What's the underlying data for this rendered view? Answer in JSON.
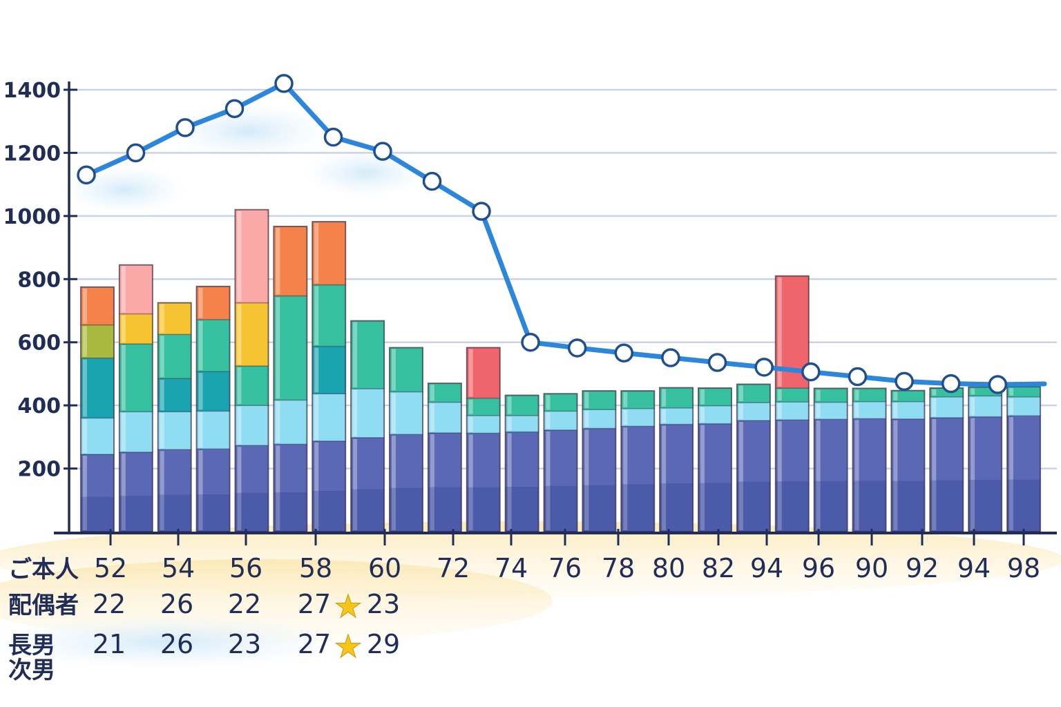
{
  "chart_data": {
    "type": "bar",
    "ylim": [
      0,
      1400
    ],
    "yticks": [
      "200",
      "400",
      "600",
      "800",
      "1000",
      "1200",
      "1400"
    ],
    "categories": [
      "52",
      "54",
      "56",
      "58",
      "60",
      "72",
      "74",
      "76",
      "78",
      "80",
      "82",
      "94",
      "96",
      "90",
      "92",
      "94",
      "98"
    ],
    "stack_colors": [
      "#5a68b6",
      "#8fdcf3",
      "#1aa3b0",
      "#36c0a0",
      "#a9b93d",
      "#f7c431",
      "#f4824a",
      "#fba8a8",
      "#f0656b"
    ],
    "bars": [
      [
        245,
        115,
        190,
        0,
        105,
        0,
        120,
        0,
        0
      ],
      [
        252,
        128,
        0,
        215,
        0,
        95,
        0,
        155,
        0
      ],
      [
        260,
        120,
        105,
        140,
        0,
        100,
        0,
        0,
        0
      ],
      [
        262,
        120,
        125,
        165,
        0,
        0,
        105,
        0,
        0
      ],
      [
        273,
        127,
        0,
        125,
        0,
        200,
        0,
        295,
        0
      ],
      [
        277,
        140,
        0,
        330,
        0,
        0,
        220,
        0,
        0
      ],
      [
        287,
        150,
        150,
        195,
        0,
        0,
        200,
        0,
        0
      ],
      [
        298,
        155,
        0,
        215,
        0,
        0,
        0,
        0,
        0
      ],
      [
        308,
        135,
        0,
        140,
        0,
        0,
        0,
        0,
        0
      ],
      [
        313,
        97,
        0,
        60,
        0,
        0,
        0,
        0,
        0
      ],
      [
        312,
        56,
        0,
        55,
        0,
        0,
        0,
        0,
        160
      ],
      [
        316,
        52,
        0,
        64,
        0,
        0,
        0,
        0,
        0
      ],
      [
        322,
        60,
        0,
        55,
        0,
        0,
        0,
        0,
        0
      ],
      [
        327,
        60,
        0,
        59,
        0,
        0,
        0,
        0,
        0
      ],
      [
        334,
        56,
        0,
        56,
        0,
        0,
        0,
        0,
        0
      ],
      [
        340,
        52,
        0,
        64,
        0,
        0,
        0,
        0,
        0
      ],
      [
        342,
        57,
        0,
        56,
        0,
        0,
        0,
        0,
        0
      ],
      [
        352,
        57,
        0,
        58,
        0,
        0,
        0,
        0,
        0
      ],
      [
        354,
        57,
        0,
        44,
        0,
        0,
        0,
        0,
        355
      ],
      [
        356,
        54,
        0,
        44,
        0,
        0,
        0,
        0,
        0
      ],
      [
        358,
        54,
        0,
        42,
        0,
        0,
        0,
        0,
        0
      ],
      [
        357,
        55,
        0,
        35,
        0,
        0,
        0,
        0,
        0
      ],
      [
        361,
        66,
        0,
        28,
        0,
        0,
        0,
        0,
        0
      ],
      [
        364,
        66,
        0,
        28,
        0,
        0,
        0,
        0,
        0
      ],
      [
        367,
        60,
        0,
        32,
        0,
        0,
        0,
        0,
        0
      ]
    ],
    "line": [
      1130,
      1200,
      1280,
      1340,
      1420,
      1250,
      1205,
      1110,
      1015,
      600,
      582,
      566,
      551,
      536,
      521,
      506,
      491,
      476,
      469,
      466,
      468
    ],
    "rows": [
      {
        "label": "ご本人",
        "values": [
          "52",
          "54",
          "56",
          "58",
          "60",
          "72",
          "74",
          "76",
          "78",
          "80",
          "82",
          "94",
          "96",
          "90",
          "92",
          "94",
          "98"
        ]
      },
      {
        "label": "配偶者",
        "values": [
          "22",
          "26",
          "22",
          "27",
          "23"
        ]
      },
      {
        "label": "長男",
        "values": [
          "21",
          "26",
          "23",
          "27",
          "29"
        ]
      },
      {
        "label": "次男",
        "values": []
      }
    ],
    "star_marks": [
      "★",
      "★"
    ],
    "colors": {
      "axis": "#1f2d57",
      "grid": "#c9d2e6",
      "line": "#2c86dc",
      "marker_fill": "#ffffff",
      "text": "#1f2d57"
    }
  }
}
